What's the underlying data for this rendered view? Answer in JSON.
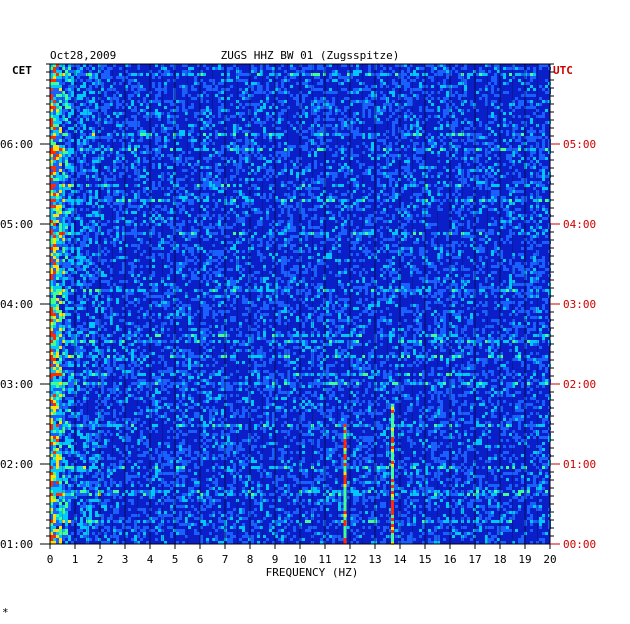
{
  "chart_data": {
    "type": "heatmap",
    "title": "ZUGS HHZ BW 01 (Zugsspitze)",
    "date": "Oct28,2009",
    "xlabel": "FREQUENCY (HZ)",
    "left_axis_label": "CET",
    "right_axis_label": "UTC",
    "xlim": [
      0,
      20
    ],
    "x_ticks": [
      "0",
      "1",
      "2",
      "3",
      "4",
      "5",
      "6",
      "7",
      "8",
      "9",
      "10",
      "11",
      "12",
      "13",
      "14",
      "15",
      "16",
      "17",
      "18",
      "19",
      "20"
    ],
    "left_ticks": [
      "06:00",
      "05:00",
      "04:00",
      "03:00",
      "02:00",
      "01:00"
    ],
    "right_ticks": [
      "05:00",
      "04:00",
      "03:00",
      "02:00",
      "01:00",
      "00:00"
    ],
    "colors": {
      "background_low": "#0a1fc8",
      "accent_right_axis": "#cc0000",
      "grid": "#000000"
    },
    "features": [
      {
        "description": "strong energy 0-1 Hz through whole record"
      },
      {
        "freq_hz": 11.8,
        "utc_from": "00:00",
        "utc_to": "01:30"
      },
      {
        "freq_hz": 13.7,
        "utc_from": "00:00",
        "utc_to": "01:45"
      }
    ]
  },
  "footer_mark": "*"
}
